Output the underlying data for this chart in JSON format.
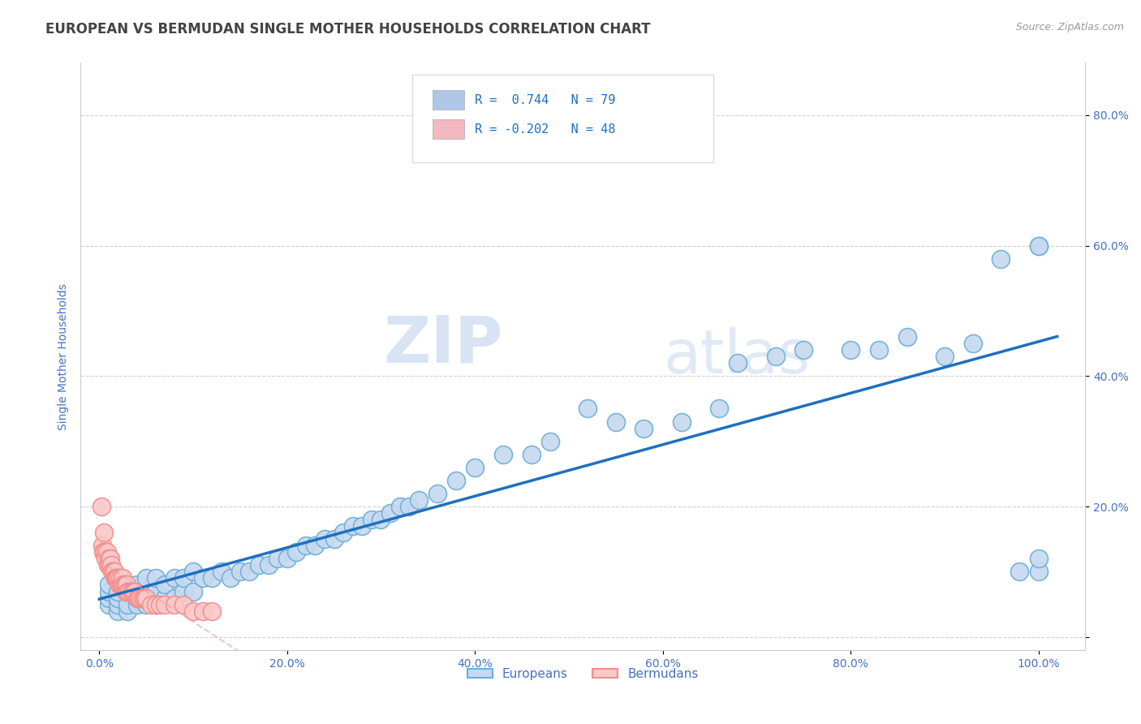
{
  "title": "EUROPEAN VS BERMUDAN SINGLE MOTHER HOUSEHOLDS CORRELATION CHART",
  "source_text": "Source: ZipAtlas.com",
  "ylabel": "Single Mother Households",
  "xlim": [
    -0.02,
    1.05
  ],
  "ylim": [
    -0.02,
    0.88
  ],
  "xticks": [
    0.0,
    0.2,
    0.4,
    0.6,
    0.8,
    1.0
  ],
  "yticks": [
    0.0,
    0.2,
    0.4,
    0.6,
    0.8
  ],
  "xtick_labels": [
    "0.0%",
    "20.0%",
    "40.0%",
    "60.0%",
    "80.0%",
    "100.0%"
  ],
  "ytick_labels": [
    "",
    "20.0%",
    "40.0%",
    "60.0%",
    "80.0%"
  ],
  "legend_labels": [
    "Europeans",
    "Bermudans"
  ],
  "blue_fill": "#c6d9f0",
  "blue_edge": "#6baed6",
  "pink_fill": "#f9c8c8",
  "pink_edge": "#f48c8c",
  "blue_line_color": "#1f6fbf",
  "pink_line_color": "#e8a0a8",
  "r_blue": 0.744,
  "n_blue": 79,
  "r_pink": -0.202,
  "n_pink": 48,
  "watermark_zip": "ZIP",
  "watermark_atlas": "atlas",
  "background_color": "#ffffff",
  "title_color": "#444444",
  "axis_label_color": "#4472c4",
  "tick_label_color": "#4472c4",
  "grid_color": "#d0d0d0",
  "title_fontsize": 12,
  "axis_label_fontsize": 10,
  "tick_fontsize": 10,
  "legend_box_color_blue": "#aec6e8",
  "legend_box_color_pink": "#f4b8c1",
  "europeans_x": [
    0.01,
    0.01,
    0.01,
    0.01,
    0.02,
    0.02,
    0.02,
    0.02,
    0.02,
    0.03,
    0.03,
    0.03,
    0.03,
    0.04,
    0.04,
    0.04,
    0.05,
    0.05,
    0.05,
    0.06,
    0.06,
    0.06,
    0.07,
    0.07,
    0.08,
    0.08,
    0.09,
    0.09,
    0.1,
    0.1,
    0.11,
    0.12,
    0.13,
    0.14,
    0.15,
    0.16,
    0.17,
    0.18,
    0.19,
    0.2,
    0.21,
    0.22,
    0.23,
    0.24,
    0.25,
    0.26,
    0.27,
    0.28,
    0.29,
    0.3,
    0.31,
    0.32,
    0.33,
    0.34,
    0.36,
    0.38,
    0.4,
    0.43,
    0.46,
    0.48,
    0.52,
    0.55,
    0.58,
    0.62,
    0.66,
    0.68,
    0.72,
    0.75,
    0.8,
    0.83,
    0.86,
    0.9,
    0.93,
    0.96,
    0.98,
    1.0,
    1.0,
    1.0,
    1.0
  ],
  "europeans_y": [
    0.05,
    0.06,
    0.07,
    0.08,
    0.04,
    0.05,
    0.06,
    0.07,
    0.09,
    0.04,
    0.05,
    0.07,
    0.08,
    0.05,
    0.06,
    0.08,
    0.05,
    0.07,
    0.09,
    0.05,
    0.07,
    0.09,
    0.06,
    0.08,
    0.06,
    0.09,
    0.07,
    0.09,
    0.07,
    0.1,
    0.09,
    0.09,
    0.1,
    0.09,
    0.1,
    0.1,
    0.11,
    0.11,
    0.12,
    0.12,
    0.13,
    0.14,
    0.14,
    0.15,
    0.15,
    0.16,
    0.17,
    0.17,
    0.18,
    0.18,
    0.19,
    0.2,
    0.2,
    0.21,
    0.22,
    0.24,
    0.26,
    0.28,
    0.28,
    0.3,
    0.35,
    0.33,
    0.32,
    0.33,
    0.35,
    0.42,
    0.43,
    0.44,
    0.44,
    0.44,
    0.46,
    0.43,
    0.45,
    0.58,
    0.1,
    0.1,
    0.12,
    0.6,
    0.6
  ],
  "bermudans_x": [
    0.002,
    0.003,
    0.004,
    0.005,
    0.006,
    0.007,
    0.008,
    0.009,
    0.01,
    0.011,
    0.012,
    0.013,
    0.014,
    0.015,
    0.016,
    0.017,
    0.018,
    0.019,
    0.02,
    0.021,
    0.022,
    0.023,
    0.024,
    0.025,
    0.026,
    0.027,
    0.028,
    0.029,
    0.03,
    0.032,
    0.034,
    0.036,
    0.038,
    0.04,
    0.042,
    0.044,
    0.046,
    0.048,
    0.05,
    0.055,
    0.06,
    0.065,
    0.07,
    0.08,
    0.09,
    0.1,
    0.11,
    0.12
  ],
  "bermudans_y": [
    0.2,
    0.14,
    0.13,
    0.16,
    0.13,
    0.12,
    0.13,
    0.11,
    0.12,
    0.11,
    0.12,
    0.11,
    0.1,
    0.1,
    0.1,
    0.09,
    0.09,
    0.09,
    0.09,
    0.08,
    0.09,
    0.08,
    0.08,
    0.09,
    0.08,
    0.08,
    0.07,
    0.08,
    0.07,
    0.07,
    0.07,
    0.07,
    0.07,
    0.06,
    0.06,
    0.06,
    0.06,
    0.06,
    0.06,
    0.05,
    0.05,
    0.05,
    0.05,
    0.05,
    0.05,
    0.04,
    0.04,
    0.04
  ]
}
